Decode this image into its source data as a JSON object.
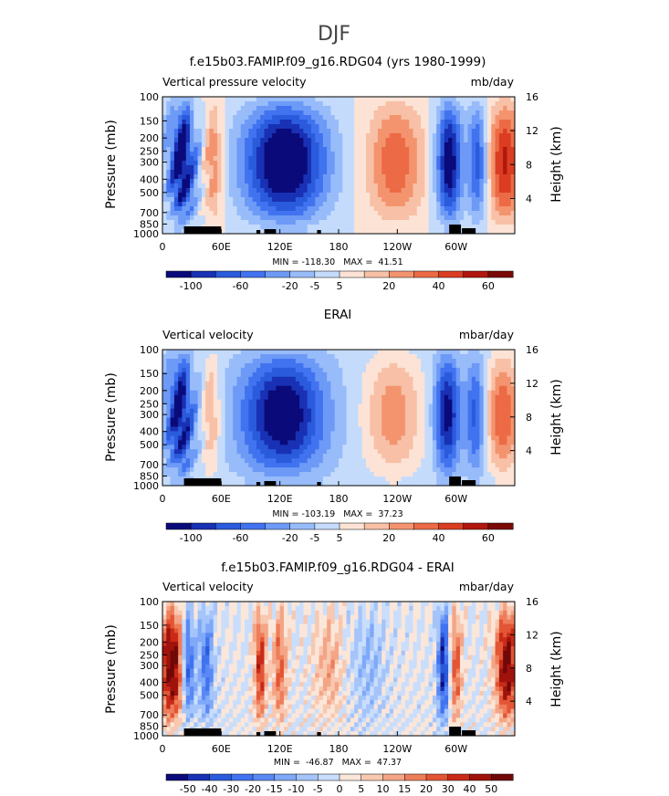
{
  "page_title": "DJF",
  "chart_data": [
    {
      "type": "heatmap",
      "title": "f.e15b03.FAMIP.f09_g16.RDG04 (yrs 1980-1999)",
      "left_label": "Vertical pressure velocity",
      "right_label": "mb/day",
      "ylabel": "Pressure (mb)",
      "y2label": "Height (km)",
      "y_ticks": [
        "100",
        "150",
        "200",
        "250",
        "300",
        "400",
        "500",
        "700",
        "850",
        "1000"
      ],
      "y2_ticks": [
        "16",
        "12",
        "8",
        "4"
      ],
      "x_ticks": [
        "0",
        "60E",
        "120E",
        "180",
        "120W",
        "60W"
      ],
      "xlim": [
        0,
        360
      ],
      "ylim": [
        1000,
        100
      ],
      "min_max": "MIN = -118.30   MAX =  41.51",
      "colorbar_labels": [
        "-100",
        "-60",
        "-20",
        "-5",
        "5",
        "20",
        "40",
        "60"
      ],
      "colors": [
        "#0a0a7a",
        "#1931b4",
        "#2a5bdc",
        "#4173f0",
        "#6d9af6",
        "#98bcfa",
        "#c4dbfc",
        "#fce3d6",
        "#f8c0a6",
        "#f3946f",
        "#ec6a45",
        "#db3d22",
        "#b0170e",
        "#7a0a08"
      ]
    },
    {
      "type": "heatmap",
      "title": "ERAI",
      "left_label": "Vertical velocity",
      "right_label": "mbar/day",
      "ylabel": "Pressure (mb)",
      "y2label": "Height (km)",
      "y_ticks": [
        "100",
        "150",
        "200",
        "250",
        "300",
        "400",
        "500",
        "700",
        "850",
        "1000"
      ],
      "y2_ticks": [
        "16",
        "12",
        "8",
        "4"
      ],
      "x_ticks": [
        "0",
        "60E",
        "120E",
        "180",
        "120W",
        "60W"
      ],
      "xlim": [
        0,
        360
      ],
      "ylim": [
        1000,
        100
      ],
      "min_max": "MIN = -103.19   MAX =  37.23",
      "colorbar_labels": [
        "-100",
        "-60",
        "-20",
        "-5",
        "5",
        "20",
        "40",
        "60"
      ],
      "colors": [
        "#0a0a7a",
        "#1931b4",
        "#2a5bdc",
        "#4173f0",
        "#6d9af6",
        "#98bcfa",
        "#c4dbfc",
        "#fce3d6",
        "#f8c0a6",
        "#f3946f",
        "#ec6a45",
        "#db3d22",
        "#b0170e",
        "#7a0a08"
      ]
    },
    {
      "type": "heatmap",
      "title": "f.e15b03.FAMIP.f09_g16.RDG04 - ERAI",
      "left_label": "Vertical velocity",
      "right_label": "mbar/day",
      "ylabel": "Pressure (mb)",
      "y2label": "Height (km)",
      "y_ticks": [
        "100",
        "150",
        "200",
        "250",
        "300",
        "400",
        "500",
        "700",
        "850",
        "1000"
      ],
      "y2_ticks": [
        "16",
        "12",
        "8",
        "4"
      ],
      "x_ticks": [
        "0",
        "60E",
        "120E",
        "180",
        "120W",
        "60W"
      ],
      "xlim": [
        0,
        360
      ],
      "ylim": [
        1000,
        100
      ],
      "min_max": "MIN =  -46.87   MAX =  47.37",
      "colorbar_labels": [
        "-50",
        "-40",
        "-30",
        "-20",
        "-15",
        "-10",
        "-5",
        "0",
        "5",
        "10",
        "15",
        "20",
        "30",
        "40",
        "50"
      ],
      "colors": [
        "#0a0a7a",
        "#1931b4",
        "#2a5bdc",
        "#4173f0",
        "#5a88f4",
        "#7fa8f8",
        "#a4c4fa",
        "#c9defc",
        "#fbe6da",
        "#f8c8b0",
        "#f4a586",
        "#ee7d5a",
        "#e35534",
        "#c82a17",
        "#a0120c",
        "#700808"
      ]
    }
  ]
}
